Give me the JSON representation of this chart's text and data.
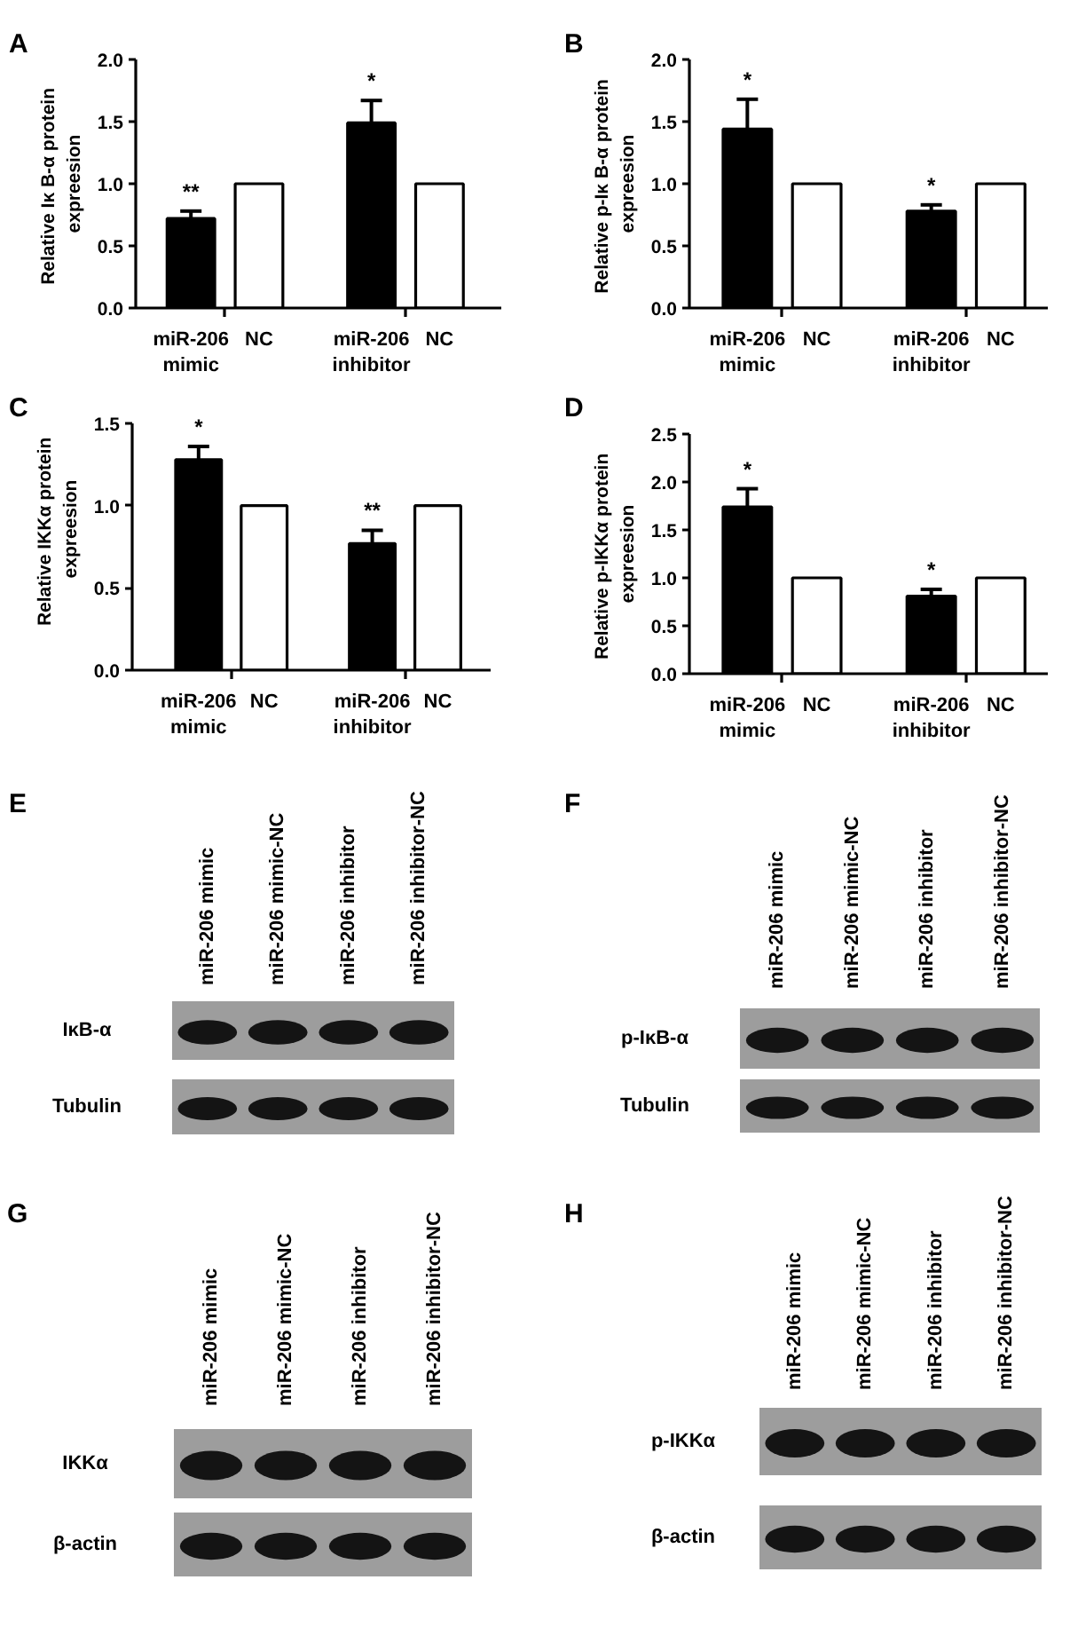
{
  "chart_data": [
    {
      "type": "bar",
      "title": "A",
      "ylabel": "Relative Iκ B-α  protein\nexpreesion",
      "categories": [
        "miR-206\nmimic",
        "NC",
        "miR-206\ninhibitor",
        "NC"
      ],
      "values": [
        0.72,
        1.0,
        1.49,
        1.0
      ],
      "colors": [
        "#000000",
        "#ffffff",
        "#000000",
        "#ffffff"
      ],
      "errors": [
        0.06,
        null,
        0.18,
        null
      ],
      "ylim": [
        0,
        2
      ],
      "yticks": [
        {
          "value": 0,
          "label": "0.0"
        },
        0.5,
        {
          "value": 1,
          "label": "1.0"
        },
        1.5,
        {
          "value": 2,
          "label": "2.0"
        }
      ],
      "annotations": [
        {
          "text": "**",
          "x": "miR-206\nmimic",
          "y": 0.78
        },
        {
          "text": "*",
          "x": "miR-206\ninhibitor",
          "y": 1.67
        }
      ]
    },
    {
      "type": "bar",
      "title": "B",
      "ylabel": "Relative p-Iκ B-α  protein\nexpreesion",
      "categories": [
        "miR-206\nmimic",
        "NC",
        "miR-206\ninhibitor",
        "NC"
      ],
      "values": [
        1.44,
        1.0,
        0.78,
        1.0
      ],
      "colors": [
        "#000000",
        "#ffffff",
        "#000000",
        "#ffffff"
      ],
      "errors": [
        0.24,
        null,
        0.05,
        null
      ],
      "ylim": [
        0,
        2
      ],
      "yticks": [
        {
          "value": 0,
          "label": "0.0"
        },
        0.5,
        {
          "value": 1,
          "label": "1.0"
        },
        1.5,
        {
          "value": 2,
          "label": "2.0"
        }
      ],
      "annotations": [
        {
          "text": "*",
          "x": "miR-206\nmimic",
          "y": 1.68
        },
        {
          "text": "*",
          "x": "miR-206\ninhibitor",
          "y": 0.83
        }
      ]
    },
    {
      "type": "bar",
      "title": "C",
      "ylabel": "Relative IKKα  protein\nexpreesion",
      "categories": [
        "miR-206\nmimic",
        "NC",
        "miR-206\ninhibitor",
        "NC"
      ],
      "values": [
        1.28,
        1.0,
        0.77,
        1.0
      ],
      "colors": [
        "#000000",
        "#ffffff",
        "#000000",
        "#ffffff"
      ],
      "errors": [
        0.08,
        null,
        0.08,
        null
      ],
      "ylim": [
        0,
        1.5
      ],
      "yticks": [
        {
          "value": 0,
          "label": "0.0"
        },
        0.5,
        {
          "value": 1,
          "label": "1.0"
        },
        1.5
      ],
      "annotations": [
        {
          "text": "*",
          "x": "miR-206\nmimic",
          "y": 1.36
        },
        {
          "text": "**",
          "x": "miR-206\ninhibitor",
          "y": 0.85
        }
      ]
    },
    {
      "type": "bar",
      "title": "D",
      "ylabel": "Relative p-IKKα  protein\nexpreesion",
      "categories": [
        "miR-206\nmimic",
        "NC",
        "miR-206\ninhibitor",
        "NC"
      ],
      "values": [
        1.74,
        1.0,
        0.81,
        1.0
      ],
      "colors": [
        "#000000",
        "#ffffff",
        "#000000",
        "#ffffff"
      ],
      "errors": [
        0.19,
        null,
        0.07,
        null
      ],
      "ylim": [
        0,
        2.5
      ],
      "yticks": [
        {
          "value": 0,
          "label": "0.0"
        },
        0.5,
        {
          "value": 1,
          "label": "1.0"
        },
        1.5,
        {
          "value": 2,
          "label": "2.0"
        },
        2.5
      ],
      "annotations": [
        {
          "text": "*",
          "x": "miR-206\nmimic",
          "y": 1.93
        },
        {
          "text": "*",
          "x": "miR-206\ninhibitor",
          "y": 0.88
        }
      ]
    },
    {
      "type": "other",
      "title": "E",
      "categories": [
        "miR-206 mimic",
        "miR-206 mimic-NC",
        "miR-206 inhibitor",
        "miR-206 inhibitor-NC"
      ],
      "y_categories": [
        "IκB-α",
        "Tubulin"
      ]
    },
    {
      "type": "other",
      "title": "F",
      "categories": [
        "miR-206 mimic",
        "miR-206 mimic-NC",
        "miR-206 inhibitor",
        "miR-206 inhibitor-NC"
      ],
      "y_categories": [
        "p-IκB-α",
        "Tubulin"
      ]
    },
    {
      "type": "other",
      "title": "G",
      "categories": [
        "miR-206 mimic",
        "miR-206 mimic-NC",
        "miR-206 inhibitor",
        "miR-206 inhibitor-NC"
      ],
      "y_categories": [
        "IKKα",
        "β-actin"
      ]
    },
    {
      "type": "other",
      "title": "H",
      "categories": [
        "miR-206 mimic",
        "miR-206 mimic-NC",
        "miR-206 inhibitor",
        "miR-206 inhibitor-NC"
      ],
      "y_categories": [
        "p-IKKα",
        "β-actin"
      ]
    }
  ]
}
